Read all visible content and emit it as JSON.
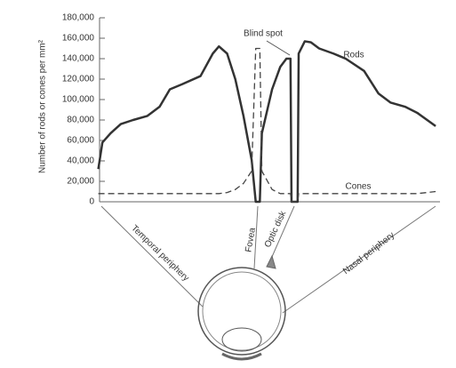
{
  "chart_data": {
    "type": "line",
    "y_label": "Number of rods or cones per mm²",
    "annotations": {
      "blind_spot": "Blind spot",
      "fovea": "Fovea",
      "optic_disk": "Optic disk",
      "temporal": "Temporal periphery",
      "nasal": "Nasal periphery"
    },
    "x": [
      -78,
      -76,
      -72,
      -67,
      -61,
      -54,
      -48,
      -43,
      -37,
      -28,
      -22,
      -19,
      -15,
      -11,
      -7,
      -3,
      -1,
      1,
      2,
      7,
      11,
      14,
      16,
      16.5,
      19.5,
      20,
      23,
      26,
      30,
      37,
      43,
      52,
      59,
      65,
      72,
      78,
      87
    ],
    "xlim": [
      -80,
      90
    ],
    "series": [
      {
        "name": "Rods",
        "color": "#333333",
        "values": [
          32000,
          58000,
          67000,
          76000,
          80000,
          84000,
          93000,
          110000,
          115000,
          123000,
          145000,
          152000,
          145000,
          120000,
          84000,
          41000,
          0,
          0,
          67000,
          110000,
          132000,
          140000,
          140000,
          0,
          0,
          145000,
          157000,
          156000,
          150000,
          145000,
          140000,
          128000,
          106000,
          97000,
          93000,
          87000,
          74000
        ]
      },
      {
        "name": "Cones",
        "color": "#444444",
        "dashed": true,
        "values": [
          8000,
          8000,
          8000,
          8000,
          8000,
          8000,
          8000,
          8000,
          8000,
          8000,
          8000,
          8000,
          9000,
          12000,
          18000,
          30000,
          150000,
          150000,
          30000,
          12000,
          8000,
          8000,
          8000,
          0,
          0,
          8000,
          8000,
          8000,
          8000,
          8000,
          8000,
          8000,
          8000,
          8000,
          8000,
          8000,
          10000
        ]
      }
    ],
    "ylim": [
      0,
      180000
    ],
    "yticks": [
      0,
      {
        "value": 20000,
        "label": "20,000"
      },
      {
        "value": 40000,
        "label": "40,000"
      },
      {
        "value": 60000,
        "label": "60,000"
      },
      {
        "value": 80000,
        "label": "80,000"
      },
      {
        "value": 100000,
        "label": "100,000"
      },
      {
        "value": 120000,
        "label": "120,000"
      },
      {
        "value": 140000,
        "label": "140,000"
      },
      {
        "value": 160000,
        "label": "160,000"
      },
      {
        "value": 180000,
        "label": "180,000"
      }
    ]
  }
}
